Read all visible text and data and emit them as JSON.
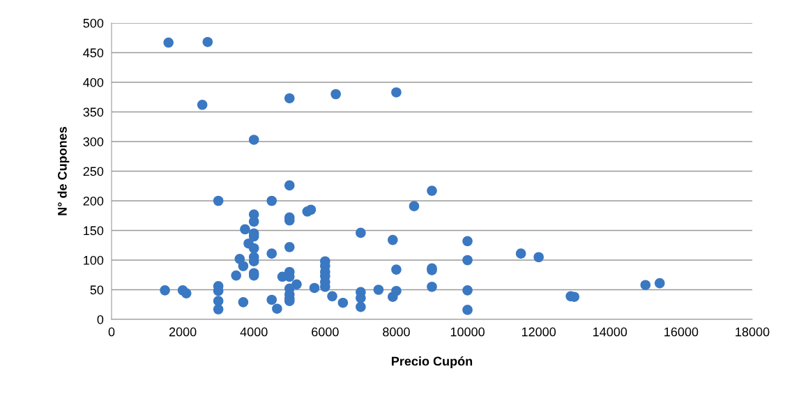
{
  "chart_data": {
    "type": "scatter",
    "xlabel": "Precio Cupón",
    "ylabel": "N° de Cupones",
    "xlim": [
      0,
      18000
    ],
    "xticks": [
      0,
      2000,
      4000,
      6000,
      8000,
      10000,
      12000,
      14000,
      16000,
      18000
    ],
    "ylim": [
      0,
      500
    ],
    "yticks": [
      0,
      50,
      100,
      150,
      200,
      250,
      300,
      350,
      400,
      450,
      500
    ],
    "grid": "y",
    "marker": "circle",
    "series": [
      {
        "color": "#3a78c2",
        "x": [
          1600,
          2700,
          2550,
          5000,
          6300,
          8000,
          4000,
          5000,
          9000,
          3000,
          4500,
          8500,
          5500,
          5600,
          4000,
          4000,
          5000,
          5000,
          3750,
          4000,
          4000,
          7000,
          7900,
          10000,
          3850,
          4000,
          5000,
          4500,
          11500,
          12000,
          3600,
          4000,
          4000,
          3700,
          6000,
          6000,
          10000,
          9000,
          9000,
          8000,
          6000,
          4000,
          4000,
          5000,
          5000,
          3500,
          4800,
          6000,
          6000,
          6000,
          5200,
          5700,
          9000,
          3000,
          3000,
          1500,
          2000,
          2100,
          5000,
          5000,
          5000,
          5000,
          7000,
          7000,
          7000,
          7500,
          8000,
          7900,
          10000,
          10000,
          6200,
          6500,
          3700,
          3000,
          3000,
          4500,
          4650,
          12900,
          13000,
          15000,
          15400
        ],
        "values": [
          467,
          468,
          362,
          373,
          380,
          383,
          303,
          226,
          217,
          200,
          200,
          191,
          182,
          185,
          177,
          165,
          172,
          167,
          152,
          145,
          140,
          146,
          134,
          132,
          128,
          120,
          122,
          111,
          111,
          105,
          102,
          105,
          98,
          90,
          98,
          90,
          100,
          86,
          83,
          84,
          80,
          78,
          74,
          80,
          72,
          74,
          72,
          73,
          63,
          55,
          59,
          53,
          55,
          56,
          48,
          49,
          49,
          44,
          52,
          42,
          35,
          31,
          46,
          36,
          21,
          50,
          48,
          38,
          49,
          16,
          39,
          28,
          29,
          31,
          17,
          33,
          18,
          39,
          38,
          58,
          61
        ]
      }
    ]
  }
}
